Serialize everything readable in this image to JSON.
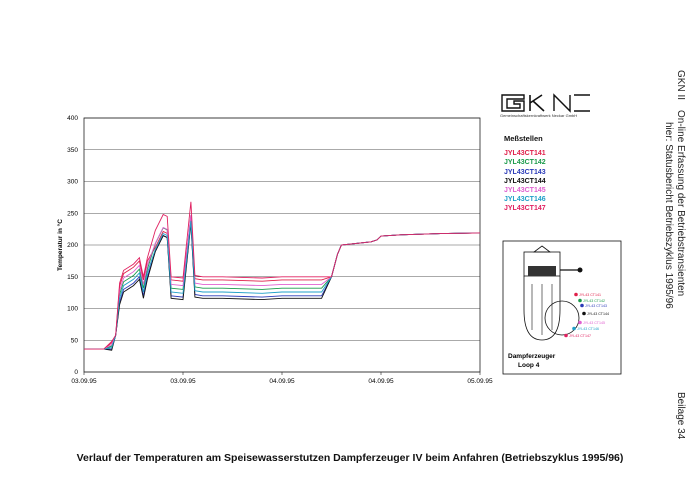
{
  "logo": {
    "text": "GKN",
    "subtitle": "Gemeinschaftskernkraftwerk Neckar GmbH"
  },
  "side_text": {
    "org": "GKN II",
    "line1": "On-line Erfassung der Betriebstransienten",
    "line2": "hier: Statusbericht Betriebszyklus 1995/96",
    "beilage": "Beilage 34"
  },
  "caption": "Verlauf der Temperaturen am Speisewasserstutzen Dampferzeuger IV beim Anfahren (Betriebszyklus 1995/96)",
  "legend": {
    "title": "Meßstellen",
    "items": [
      {
        "name": "JYL43CT141",
        "color": "#e0204a"
      },
      {
        "name": "JYL43CT142",
        "color": "#1a9a4a"
      },
      {
        "name": "JYL43CT143",
        "color": "#2a3ab8"
      },
      {
        "name": "JYL43CT144",
        "color": "#111111"
      },
      {
        "name": "JYL43CT145",
        "color": "#e060d0"
      },
      {
        "name": "JYL43CT146",
        "color": "#20a0c8"
      },
      {
        "name": "JYL43CT147",
        "color": "#e02060"
      }
    ]
  },
  "diagram": {
    "label1": "Dampferzeuger",
    "label2": "Loop 4",
    "sensors": [
      "JYL43 CT141",
      "JYL43 CT142",
      "JYL43 CT143",
      "JYL43 CT144",
      "JYL43 CT145",
      "JYL43 CT146",
      "JYL43 CT147"
    ]
  },
  "chart_data": {
    "type": "line",
    "ylabel": "Temperatur in °C",
    "xlabel": "",
    "ylim": [
      0,
      400
    ],
    "yticks": [
      0,
      50,
      100,
      150,
      200,
      250,
      300,
      350,
      400
    ],
    "xlim": [
      0,
      2
    ],
    "xticks": [
      {
        "v": 0,
        "label": "03.09.95"
      },
      {
        "v": 0.5,
        "label": "03.09.95"
      },
      {
        "v": 1,
        "label": "04.09.95"
      },
      {
        "v": 1.5,
        "label": "04.09.95"
      },
      {
        "v": 2,
        "label": "05.09.95"
      }
    ],
    "grid": true,
    "baseline": [
      [
        0,
        36
      ],
      [
        0.1,
        36
      ],
      [
        0.14,
        36
      ],
      [
        0.16,
        58
      ],
      [
        0.18,
        110
      ],
      [
        0.2,
        130
      ],
      [
        0.25,
        140
      ],
      [
        0.28,
        150
      ],
      [
        0.3,
        120
      ],
      [
        0.32,
        150
      ],
      [
        0.36,
        190
      ],
      [
        0.4,
        215
      ],
      [
        0.42,
        212
      ],
      [
        0.44,
        120
      ],
      [
        0.5,
        118
      ],
      [
        0.54,
        235
      ],
      [
        0.56,
        122
      ],
      [
        0.6,
        120
      ],
      [
        0.7,
        120
      ],
      [
        0.9,
        118
      ],
      [
        1.0,
        120
      ],
      [
        1.2,
        120
      ]
    ],
    "offsets": [
      25,
      12,
      0,
      -4,
      18,
      6,
      30
    ],
    "jumps": {
      "x": [
        0.44,
        0.56
      ],
      "amp": [
        0.25,
        1.0,
        0.45,
        0.1,
        0.7,
        0.5,
        1.1
      ]
    },
    "rise": [
      [
        1.2,
        120
      ],
      [
        1.25,
        150
      ],
      [
        1.28,
        185
      ],
      [
        1.3,
        200
      ],
      [
        1.45,
        205
      ],
      [
        1.48,
        208
      ],
      [
        1.5,
        214
      ],
      [
        1.6,
        216
      ],
      [
        1.8,
        218
      ],
      [
        2.0,
        219
      ]
    ]
  }
}
